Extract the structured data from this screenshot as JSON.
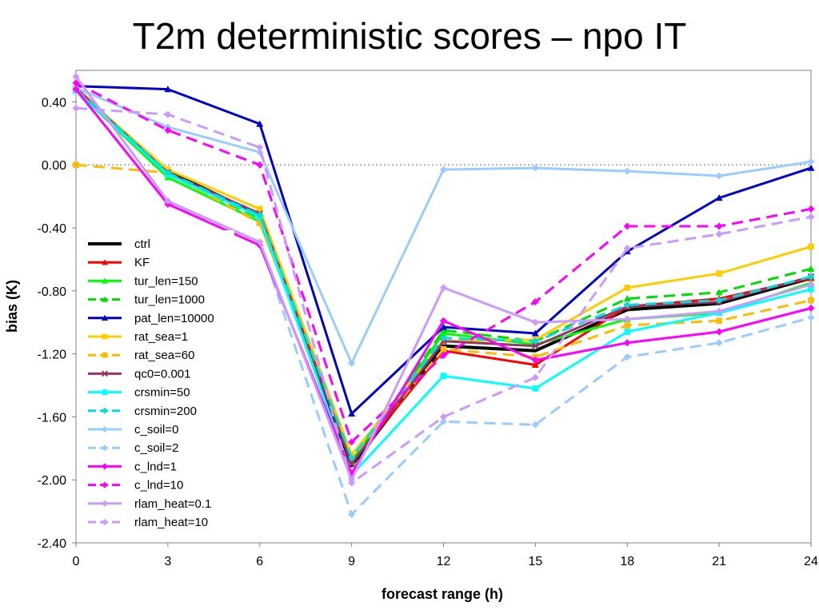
{
  "page": {
    "title": "T2m deterministic scores – npo IT"
  },
  "chart_data": {
    "type": "line",
    "title": "T2m deterministic scores – npo IT",
    "xlabel": "forecast range (h)",
    "ylabel": "bias (K)",
    "x": [
      0,
      3,
      6,
      9,
      12,
      15,
      18,
      21,
      24
    ],
    "x_ticks": [
      "0",
      "3",
      "6",
      "9",
      "12",
      "15",
      "18",
      "21",
      "24"
    ],
    "y_ticks": [
      "0.40",
      "0.00",
      "-0.40",
      "-0.80",
      "-1.20",
      "-1.60",
      "-2.00",
      "-2.40"
    ],
    "ylim": [
      -2.4,
      0.6
    ],
    "xlim": [
      0,
      24
    ],
    "grid": false,
    "zero_reference_line": true,
    "legend_position": "left-inside",
    "series": [
      {
        "name": "ctrl",
        "color": "#000000",
        "dash": "solid",
        "marker": "none",
        "values": [
          0.48,
          -0.04,
          -0.32,
          -1.91,
          -1.15,
          -1.18,
          -0.92,
          -0.88,
          -0.72
        ]
      },
      {
        "name": "KF",
        "color": "#ff0000",
        "dash": "solid",
        "marker": "triangle",
        "values": [
          0.49,
          -0.05,
          -0.31,
          -1.89,
          -1.18,
          -1.27,
          -0.9,
          -0.85,
          -0.72
        ]
      },
      {
        "name": "tur_len=150",
        "color": "#00ff00",
        "dash": "solid",
        "marker": "triangle",
        "values": [
          0.47,
          -0.08,
          -0.36,
          -1.88,
          -1.07,
          -1.14,
          -0.98,
          -0.94,
          -0.75
        ]
      },
      {
        "name": "tur_len=1000",
        "color": "#00dd00",
        "dash": "dashed",
        "marker": "triangle",
        "values": [
          0.48,
          -0.06,
          -0.34,
          -1.89,
          -1.05,
          -1.12,
          -0.85,
          -0.81,
          -0.66
        ]
      },
      {
        "name": "pat_len=10000",
        "color": "#0000cc",
        "dash": "solid",
        "marker": "triangle",
        "values": [
          0.5,
          0.48,
          0.26,
          -1.58,
          -1.03,
          -1.07,
          -0.55,
          -0.21,
          -0.02
        ]
      },
      {
        "name": "rat_sea=1",
        "color": "#ffcc00",
        "dash": "solid",
        "marker": "square",
        "values": [
          0.48,
          -0.03,
          -0.28,
          -1.84,
          -1.12,
          -1.11,
          -0.78,
          -0.69,
          -0.52
        ]
      },
      {
        "name": "rat_sea=60",
        "color": "#ffbb00",
        "dash": "dashed",
        "marker": "square",
        "values": [
          0.0,
          -0.05,
          -0.37,
          -1.86,
          -1.17,
          -1.22,
          -1.02,
          -0.99,
          -0.86
        ]
      },
      {
        "name": "qc0=0.001",
        "color": "#993366",
        "dash": "solid",
        "marker": "x",
        "values": [
          0.48,
          -0.05,
          -0.31,
          -1.9,
          -1.12,
          -1.15,
          -0.9,
          -0.87,
          -0.71
        ]
      },
      {
        "name": "crsmin=50",
        "color": "#00ffff",
        "dash": "solid",
        "marker": "square",
        "values": [
          0.47,
          -0.06,
          -0.33,
          -1.97,
          -1.34,
          -1.42,
          -1.06,
          -0.94,
          -0.79
        ]
      },
      {
        "name": "crsmin=200",
        "color": "#00dddd",
        "dash": "dashed",
        "marker": "diamond",
        "values": [
          0.48,
          -0.05,
          -0.32,
          -1.86,
          -1.1,
          -1.12,
          -0.89,
          -0.86,
          -0.71
        ]
      },
      {
        "name": "c_soil=0",
        "color": "#99ccff",
        "dash": "solid",
        "marker": "diamond",
        "values": [
          0.49,
          0.24,
          0.08,
          -1.26,
          -0.03,
          -0.02,
          -0.04,
          -0.07,
          0.02
        ]
      },
      {
        "name": "c_soil=2",
        "color": "#99ccff",
        "dash": "dashed",
        "marker": "diamond",
        "values": [
          0.47,
          -0.24,
          -0.49,
          -2.22,
          -1.63,
          -1.65,
          -1.22,
          -1.13,
          -0.97
        ]
      },
      {
        "name": "c_lnd=1",
        "color": "#ff00ff",
        "dash": "solid",
        "marker": "diamond",
        "values": [
          0.48,
          -0.25,
          -0.51,
          -1.96,
          -0.99,
          -1.24,
          -1.13,
          -1.06,
          -0.91
        ]
      },
      {
        "name": "c_lnd=10",
        "color": "#ff00ff",
        "dash": "dashed",
        "marker": "diamond",
        "values": [
          0.52,
          0.22,
          0.0,
          -1.76,
          -1.21,
          -0.87,
          -0.39,
          -0.39,
          -0.28
        ]
      },
      {
        "name": "rlam_heat=0.1",
        "color": "#cc99ff",
        "dash": "solid",
        "marker": "diamond",
        "values": [
          0.56,
          -0.23,
          -0.49,
          -2.0,
          -0.78,
          -1.0,
          -0.98,
          -0.93,
          -0.76
        ]
      },
      {
        "name": "rlam_heat=10",
        "color": "#cc99ff",
        "dash": "dashed",
        "marker": "diamond",
        "values": [
          0.36,
          0.32,
          0.11,
          -2.02,
          -1.6,
          -1.35,
          -0.53,
          -0.44,
          -0.33
        ]
      }
    ]
  }
}
